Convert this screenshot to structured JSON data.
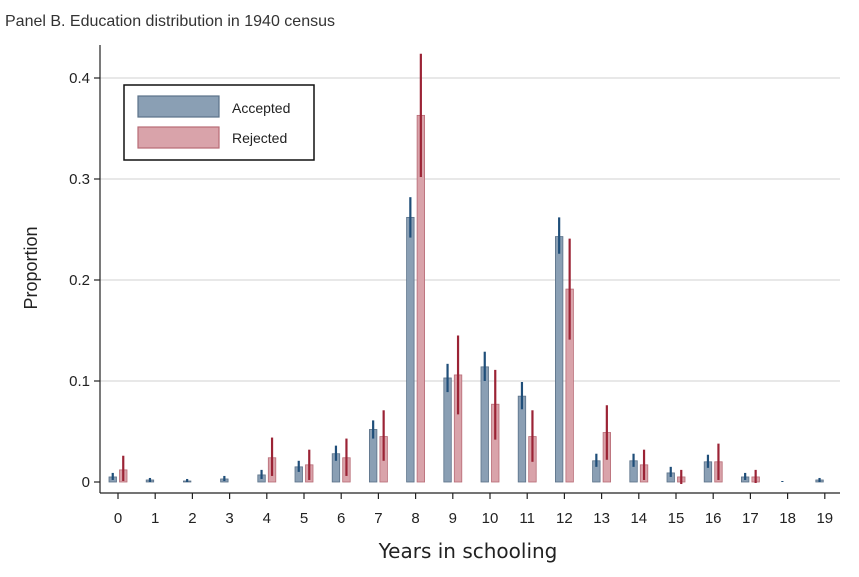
{
  "chart_data": {
    "type": "bar",
    "title": "Panel B. Education distribution in 1940 census",
    "xlabel": "Years in schooling",
    "ylabel": "Proportion",
    "categories": [
      "0",
      "1",
      "2",
      "3",
      "4",
      "5",
      "6",
      "7",
      "8",
      "9",
      "10",
      "11",
      "12",
      "13",
      "14",
      "15",
      "16",
      "17",
      "18",
      "19"
    ],
    "ylim": [
      0,
      0.44
    ],
    "yticks": [
      0,
      0.1,
      0.2,
      0.3,
      0.4
    ],
    "ytick_labels": [
      "0",
      "0.1",
      "0.2",
      "0.3",
      "0.4"
    ],
    "grid": true,
    "legend_position": "top-left",
    "series": [
      {
        "name": "Accepted",
        "color": "#8a9fb4",
        "edge_color": "#5a7188",
        "error_color": "#1f4e79",
        "values": [
          0.005,
          0.002,
          0.001,
          0.003,
          0.007,
          0.015,
          0.028,
          0.052,
          0.262,
          0.103,
          0.114,
          0.085,
          0.243,
          0.021,
          0.021,
          0.009,
          0.02,
          0.005,
          0.0,
          0.002
        ],
        "error_low": [
          0.002,
          0.0,
          0.0,
          0.001,
          0.003,
          0.01,
          0.021,
          0.043,
          0.242,
          0.089,
          0.1,
          0.072,
          0.226,
          0.015,
          0.015,
          0.005,
          0.014,
          0.002,
          0.0,
          0.0
        ],
        "error_high": [
          0.009,
          0.004,
          0.003,
          0.006,
          0.012,
          0.021,
          0.036,
          0.061,
          0.282,
          0.117,
          0.129,
          0.099,
          0.262,
          0.028,
          0.028,
          0.015,
          0.027,
          0.009,
          0.001,
          0.004
        ]
      },
      {
        "name": "Rejected",
        "color": "#d9a3aa",
        "edge_color": "#b86b76",
        "error_color": "#9b2335",
        "values": [
          0.012,
          0.0,
          0.0,
          0.0,
          0.024,
          0.017,
          0.024,
          0.045,
          0.363,
          0.106,
          0.077,
          0.045,
          0.191,
          0.049,
          0.017,
          0.005,
          0.02,
          0.005,
          0.0,
          0.0
        ],
        "error_low": [
          0.001,
          0.0,
          0.0,
          0.0,
          0.006,
          0.002,
          0.006,
          0.021,
          0.302,
          0.067,
          0.042,
          0.02,
          0.141,
          0.022,
          0.002,
          -0.002,
          0.002,
          -0.001,
          0.0,
          0.0
        ],
        "error_high": [
          0.026,
          0.0,
          0.0,
          0.0,
          0.044,
          0.032,
          0.043,
          0.071,
          0.424,
          0.145,
          0.111,
          0.071,
          0.241,
          0.076,
          0.032,
          0.012,
          0.038,
          0.012,
          0.0,
          0.0
        ]
      }
    ]
  }
}
